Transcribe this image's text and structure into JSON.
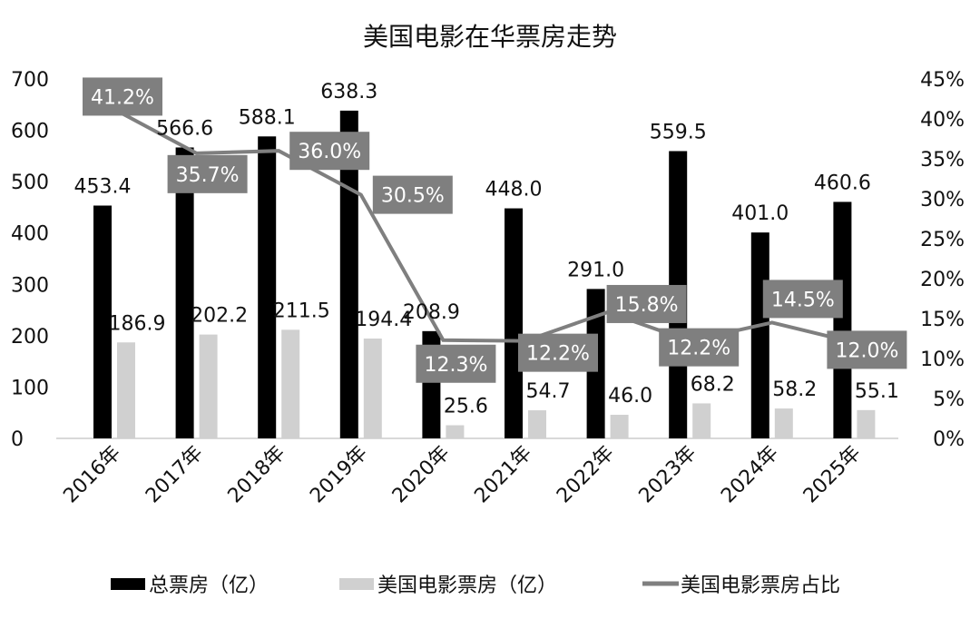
{
  "chart_data": {
    "type": "bar",
    "title": "美国电影在华票房走势",
    "categories": [
      "2016年",
      "2017年",
      "2018年",
      "2019年",
      "2020年",
      "2021年",
      "2022年",
      "2023年",
      "2024年",
      "2025年"
    ],
    "series": [
      {
        "name": "总票房（亿）",
        "type": "bar",
        "axis": "left",
        "color": "#000000",
        "values": [
          453.4,
          566.6,
          588.1,
          638.3,
          208.9,
          448.0,
          291.0,
          559.5,
          401.0,
          460.6
        ],
        "labels": [
          "453.4",
          "566.6",
          "588.1",
          "638.3",
          "208.9",
          "448.0",
          "291.0",
          "559.5",
          "401.0",
          "460.6"
        ]
      },
      {
        "name": "美国电影票房（亿）",
        "type": "bar",
        "axis": "left",
        "color": "#d0d0d0",
        "values": [
          186.9,
          202.2,
          211.5,
          194.4,
          25.6,
          54.7,
          46.0,
          68.2,
          58.2,
          55.1
        ],
        "labels": [
          "186.9",
          "202.2",
          "211.5",
          "194.4",
          "25.6",
          "54.7",
          "46.0",
          "68.2",
          "58.2",
          "55.1"
        ]
      },
      {
        "name": "美国电影票房占比",
        "type": "line",
        "axis": "right",
        "color": "#7f7f7f",
        "values": [
          41.2,
          35.7,
          36.0,
          30.5,
          12.3,
          12.2,
          15.8,
          12.2,
          14.5,
          12.0
        ],
        "labels": [
          "41.2%",
          "35.7%",
          "36.0%",
          "30.5%",
          "12.3%",
          "12.2%",
          "15.8%",
          "12.2%",
          "14.5%",
          "12.0%"
        ]
      }
    ],
    "y_left": {
      "range": [
        0,
        700
      ],
      "ticks": [
        "0",
        "100",
        "200",
        "300",
        "400",
        "500",
        "600",
        "700"
      ]
    },
    "y_right": {
      "range": [
        0,
        45
      ],
      "ticks": [
        "0%",
        "5%",
        "10%",
        "15%",
        "20%",
        "25%",
        "30%",
        "35%",
        "40%",
        "45%"
      ]
    },
    "grid": false,
    "legend_position": "bottom"
  }
}
